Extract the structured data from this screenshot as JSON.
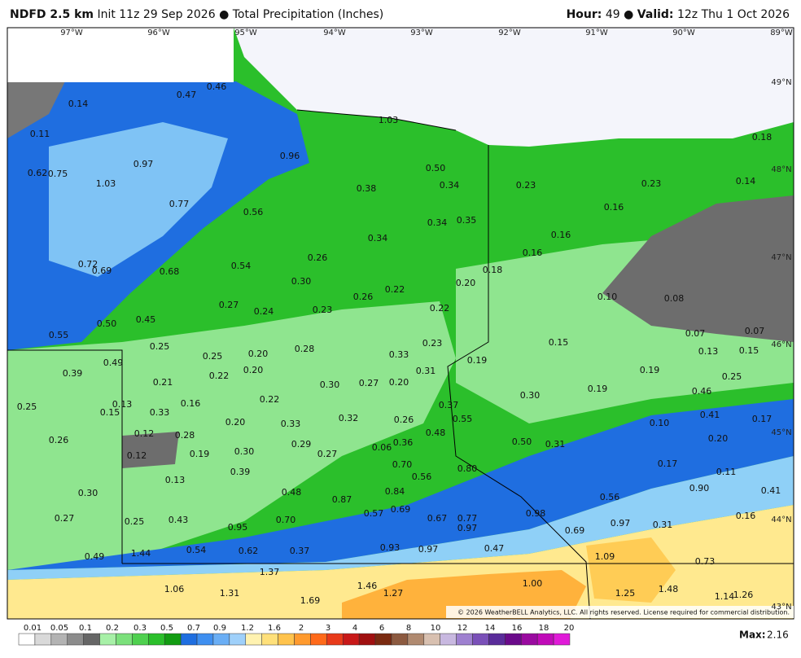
{
  "header": {
    "model": "NDFD 2.5 km",
    "init": "Init 11z 29 Sep 2026",
    "bullet": "●",
    "field": "Total Precipitation (Inches)",
    "hour_label": "Hour:",
    "hour": "49",
    "valid_label": "Valid:",
    "valid": "12z Thu 1 Oct 2026"
  },
  "map": {
    "longitudes": [
      "97°W",
      "96°W",
      "95°W",
      "94°W",
      "93°W",
      "92°W",
      "91°W",
      "90°W",
      "89°W"
    ],
    "latitudes": [
      "49°N",
      "48°N",
      "47°N",
      "46°N",
      "45°N",
      "44°N",
      "43°N"
    ],
    "labels": [
      "0.46",
      "0.47",
      "0.14",
      "0.11",
      "0.97",
      "0.62",
      "0.75",
      "1.03",
      "0.96",
      "1.03",
      "0.50",
      "0.34",
      "0.38",
      "0.23",
      "0.23",
      "0.18",
      "0.14",
      "0.77",
      "0.56",
      "0.34",
      "0.35",
      "0.16",
      "0.16",
      "0.34",
      "0.26",
      "0.16",
      "0.72",
      "0.69",
      "0.68",
      "0.54",
      "0.18",
      "0.30",
      "0.20",
      "0.22",
      "0.26",
      "0.10",
      "0.08",
      "0.27",
      "0.24",
      "0.23",
      "0.22",
      "0.45",
      "0.50",
      "0.55",
      "0.07",
      "0.07",
      "0.25",
      "0.28",
      "0.23",
      "0.15",
      "0.13",
      "0.15",
      "0.25",
      "0.20",
      "0.33",
      "0.19",
      "0.49",
      "0.39",
      "0.22",
      "0.20",
      "0.21",
      "0.31",
      "0.19",
      "0.25",
      "0.30",
      "0.27",
      "0.20",
      "0.19",
      "0.30",
      "0.46",
      "0.25",
      "0.13",
      "0.16",
      "0.22",
      "0.15",
      "0.33",
      "0.37",
      "0.41",
      "0.17",
      "0.20",
      "0.33",
      "0.32",
      "0.26",
      "0.55",
      "0.10",
      "0.12",
      "0.28",
      "0.48",
      "0.20",
      "0.26",
      "0.29",
      "0.36",
      "0.50",
      "0.31",
      "0.06",
      "0.12",
      "0.19",
      "0.30",
      "0.27",
      "0.70",
      "0.17",
      "0.39",
      "0.56",
      "0.80",
      "0.11",
      "0.13",
      "0.30",
      "0.48",
      "0.84",
      "0.90",
      "0.41",
      "0.87",
      "0.56",
      "0.57",
      "0.69",
      "0.67",
      "0.77",
      "0.98",
      "0.16",
      "0.27",
      "0.25",
      "0.43",
      "0.70",
      "0.97",
      "0.97",
      "0.31",
      "0.95",
      "0.69",
      "0.93",
      "0.97",
      "0.47",
      "0.54",
      "0.62",
      "0.37",
      "0.49",
      "1.44",
      "1.09",
      "0.73",
      "1.37",
      "1.00",
      "1.06",
      "1.31",
      "1.46",
      "1.27",
      "1.48",
      "1.25",
      "1.14",
      "1.26",
      "1.69"
    ],
    "copyright": "© 2026 WeatherBELL Analytics, LLC. All rights reserved. License required for commercial distribution."
  },
  "colorbar": {
    "ticks": [
      "0.01",
      "0.05",
      "0.1",
      "0.2",
      "0.3",
      "0.5",
      "0.7",
      "0.9",
      "1.2",
      "1.6",
      "2",
      "3",
      "4",
      "6",
      "8",
      "10",
      "12",
      "14",
      "16",
      "18",
      "20"
    ],
    "max_label": "Max:",
    "max": "2.16"
  }
}
